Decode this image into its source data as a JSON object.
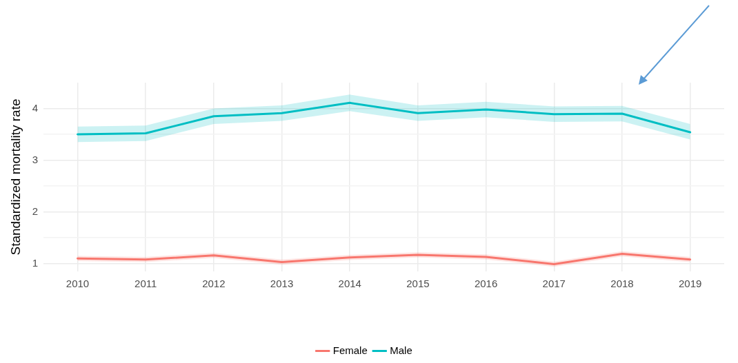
{
  "chart_data": {
    "type": "line",
    "ylabel": "Standardized mortality rate",
    "categories": [
      "2010",
      "2011",
      "2012",
      "2013",
      "2014",
      "2015",
      "2016",
      "2017",
      "2018",
      "2019"
    ],
    "series": [
      {
        "name": "Female",
        "color": "#f8766d",
        "values": [
          1.1,
          1.08,
          1.16,
          1.03,
          1.12,
          1.17,
          1.13,
          0.99,
          1.19,
          1.08
        ],
        "lower": [
          1.05,
          1.03,
          1.11,
          0.98,
          1.07,
          1.12,
          1.08,
          0.94,
          1.14,
          1.03
        ],
        "upper": [
          1.15,
          1.13,
          1.21,
          1.08,
          1.17,
          1.22,
          1.18,
          1.04,
          1.24,
          1.13
        ]
      },
      {
        "name": "Male",
        "color": "#00bfc4",
        "values": [
          3.5,
          3.52,
          3.85,
          3.91,
          4.11,
          3.91,
          3.98,
          3.89,
          3.9,
          3.54
        ],
        "lower": [
          3.35,
          3.37,
          3.7,
          3.76,
          3.95,
          3.76,
          3.83,
          3.74,
          3.75,
          3.4
        ],
        "upper": [
          3.65,
          3.67,
          4.0,
          4.06,
          4.27,
          4.06,
          4.13,
          4.04,
          4.05,
          3.7
        ]
      }
    ],
    "ylim": [
      0.85,
      4.5
    ],
    "yticks": [
      1,
      {
        "value": 1.5,
        "label": null
      },
      2,
      {
        "value": 2.5,
        "label": null
      },
      3,
      {
        "value": 3.5,
        "label": null
      },
      4
    ],
    "grid": true,
    "legend": "bottom",
    "line_style": "solid",
    "marker": "none"
  }
}
